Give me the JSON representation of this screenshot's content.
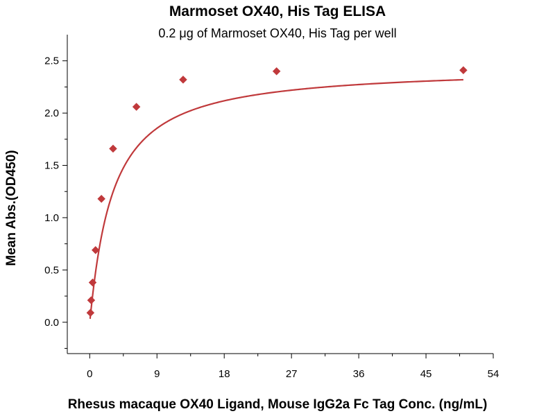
{
  "chart_data": {
    "type": "scatter",
    "title": "Marmoset OX40, His Tag ELISA",
    "subtitle": "0.2 μg of Marmoset OX40, His Tag per well",
    "xlabel": "Rhesus macaque OX40 Ligand, Mouse IgG2a Fc Tag Conc. (ng/mL)",
    "ylabel": "Mean Abs.(OD450)",
    "xlim": [
      -3,
      54
    ],
    "ylim": [
      -0.3,
      2.75
    ],
    "xticks": [
      0,
      9,
      18,
      27,
      36,
      45,
      54
    ],
    "yticks": [
      0.0,
      0.5,
      1.0,
      1.5,
      2.0,
      2.5
    ],
    "ytick_labels": [
      "0.0",
      "0.5",
      "1.0",
      "1.5",
      "2.0",
      "2.5"
    ],
    "grid": false,
    "legend": "none",
    "series": [
      {
        "x": [
          0.098,
          0.195,
          0.391,
          0.781,
          1.563,
          3.125,
          6.25,
          12.5,
          25,
          50
        ],
        "y": [
          0.09,
          0.21,
          0.38,
          0.69,
          1.18,
          1.66,
          2.06,
          2.32,
          2.4,
          2.41
        ],
        "color": "#c0393b",
        "marker": "diamond",
        "fit": "four-parameter logistic curve"
      }
    ]
  }
}
